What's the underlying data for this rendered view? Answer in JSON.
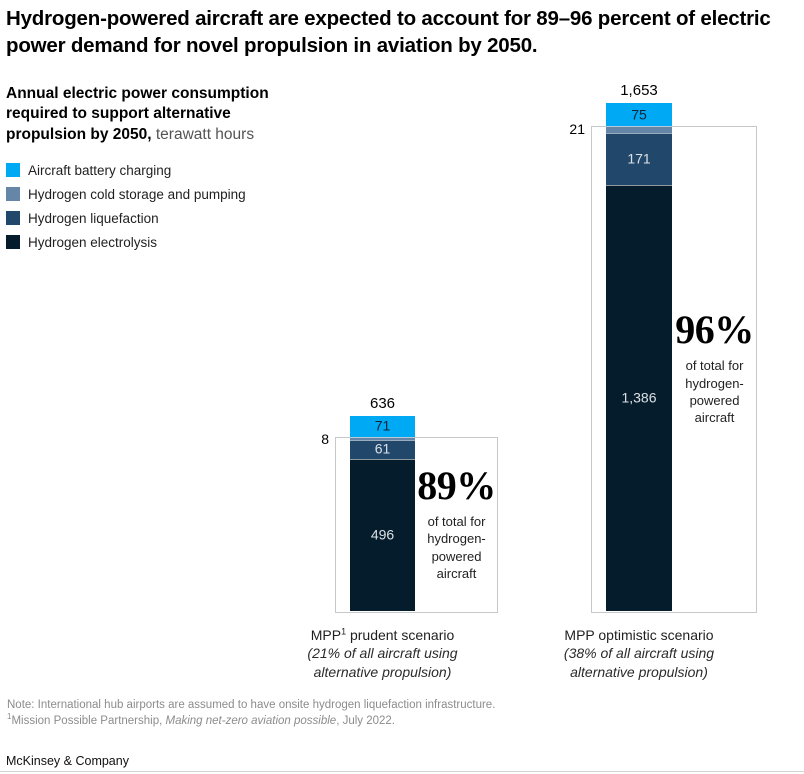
{
  "title": "Hydrogen-powered aircraft are expected to account for 89–96 percent of electric power demand for novel propulsion in aviation by 2050.",
  "subtitle": {
    "bold": "Annual electric power consumption required to support alternative propulsion by 2050,",
    "unit": " terawatt hours"
  },
  "chart_data": {
    "type": "bar",
    "stacked": true,
    "unit": "terawatt hours",
    "legend_position": "top-left",
    "categories": [
      "MPP¹ prudent scenario",
      "MPP optimistic scenario"
    ],
    "series": [
      {
        "name": "Aircraft battery charging",
        "color": "#00A9F4",
        "values": [
          71,
          75
        ],
        "labels": [
          "71",
          "75"
        ],
        "label_style": "dark-inside"
      },
      {
        "name": "Hydrogen cold storage and pumping",
        "color": "#6586A6",
        "values": [
          8,
          21
        ],
        "labels": [
          "8",
          "21"
        ],
        "label_style": "outside-left"
      },
      {
        "name": "Hydrogen liquefaction",
        "color": "#21486B",
        "values": [
          61,
          171
        ],
        "labels": [
          "61",
          "171"
        ],
        "label_style": "light-inside"
      },
      {
        "name": "Hydrogen electrolysis",
        "color": "#051C2C",
        "values": [
          496,
          1386
        ],
        "labels": [
          "496",
          "1,386"
        ],
        "label_style": "light-inside"
      }
    ],
    "totals": {
      "values": [
        636,
        1653
      ],
      "labels": [
        "636",
        "1,653"
      ]
    },
    "callouts": [
      {
        "percent": "89%",
        "caption": "of total for hydrogen-powered aircraft"
      },
      {
        "percent": "96%",
        "caption": "of total for hydrogen-powered aircraft"
      }
    ],
    "scenario_labels": [
      {
        "pre": "MPP",
        "sup": "1",
        "post": " prudent scenario",
        "sub": "(21% of all aircraft using alternative propulsion)"
      },
      {
        "pre": "MPP optimistic scenario",
        "sup": "",
        "post": "",
        "sub": "(38% of all aircraft using alternative propulsion)"
      }
    ]
  },
  "colors": {
    "battery": "#00A9F4",
    "cold_storage": "#6586A6",
    "liquefaction": "#21486B",
    "electrolysis": "#051C2C",
    "box_border": "#c6c9cc",
    "light_value_text": "#dbe0e5",
    "dark_value_text": "#0b2436"
  },
  "footnotes": {
    "note": "Note: International hub airports are assumed to have onsite hydrogen liquefaction infrastructure.",
    "source_sup": "1",
    "source_prefix": "Mission Possible Partnership, ",
    "source_italic": "Making net-zero aviation possible",
    "source_suffix": ", July 2022."
  },
  "footer": "McKinsey & Company"
}
